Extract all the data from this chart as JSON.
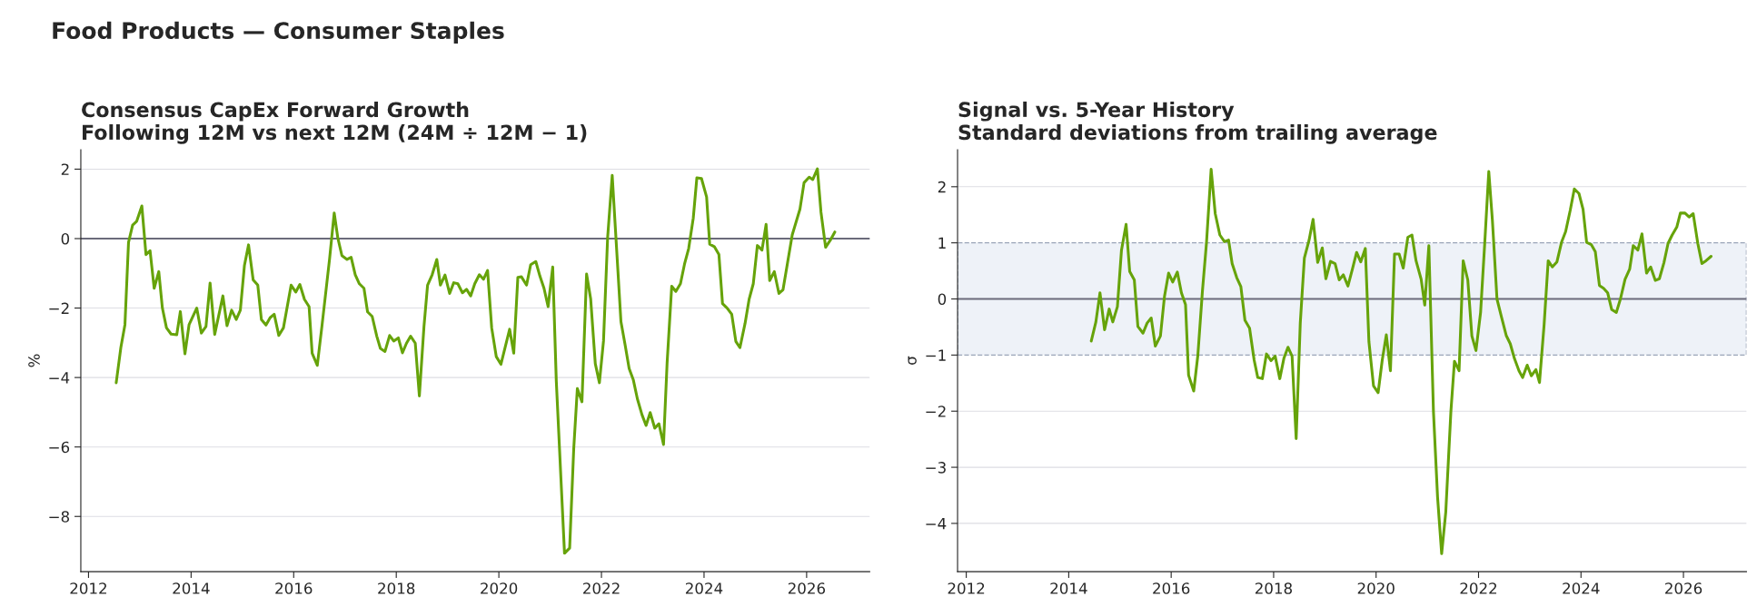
{
  "chart_data": [
    {
      "type": "line",
      "title": "Consensus CapEx Forward Growth",
      "subtitle": "Following 12M vs next 12M (24M ÷ 12M − 1)",
      "ylabel": "%",
      "annotations": [
        "Food Products — Consumer Staples"
      ],
      "xlim": [
        2011.85,
        2027.23
      ],
      "xticks": [
        2012,
        2014,
        2016,
        2018,
        2020,
        2022,
        2024,
        2026
      ],
      "ylim": [
        -9.59,
        2.56
      ],
      "yticks": [
        {
          "value": -8,
          "label": "−8"
        },
        {
          "value": -6,
          "label": "−6"
        },
        {
          "value": -4,
          "label": "−4"
        },
        {
          "value": -2,
          "label": "−2"
        },
        0,
        2
      ],
      "grid": "y",
      "ref_lines": [
        {
          "axis": "y",
          "value": 0,
          "color": "#6b6b7b",
          "line_style": "solid"
        }
      ],
      "series": [
        {
          "color": "#66a30a",
          "x": [
            2012.54,
            2012.63,
            2012.71,
            2012.78,
            2012.86,
            2012.94,
            2013.04,
            2013.12,
            2013.2,
            2013.28,
            2013.37,
            2013.44,
            2013.52,
            2013.61,
            2013.72,
            2013.79,
            2013.88,
            2013.96,
            2014.11,
            2014.2,
            2014.29,
            2014.37,
            2014.46,
            2014.62,
            2014.7,
            2014.79,
            2014.88,
            2014.96,
            2015.04,
            2015.12,
            2015.21,
            2015.3,
            2015.37,
            2015.46,
            2015.54,
            2015.62,
            2015.71,
            2015.8,
            2015.95,
            2016.04,
            2016.12,
            2016.21,
            2016.3,
            2016.36,
            2016.46,
            2016.55,
            2016.7,
            2016.79,
            2016.86,
            2016.94,
            2017.04,
            2017.12,
            2017.2,
            2017.28,
            2017.37,
            2017.44,
            2017.53,
            2017.62,
            2017.69,
            2017.78,
            2017.87,
            2017.95,
            2018.04,
            2018.12,
            2018.2,
            2018.28,
            2018.37,
            2018.45,
            2018.54,
            2018.61,
            2018.7,
            2018.79,
            2018.86,
            2018.95,
            2019.04,
            2019.12,
            2019.2,
            2019.29,
            2019.37,
            2019.45,
            2019.53,
            2019.62,
            2019.7,
            2019.78,
            2019.86,
            2019.95,
            2020.04,
            2020.21,
            2020.29,
            2020.37,
            2020.44,
            2020.54,
            2020.62,
            2020.72,
            2020.8,
            2020.88,
            2020.96,
            2021.05,
            2021.12,
            2021.21,
            2021.28,
            2021.38,
            2021.46,
            2021.53,
            2021.62,
            2021.71,
            2021.79,
            2021.88,
            2021.96,
            2022.04,
            2022.12,
            2022.21,
            2022.29,
            2022.38,
            2022.46,
            2022.54,
            2022.62,
            2022.7,
            2022.79,
            2022.87,
            2022.95,
            2023.04,
            2023.12,
            2023.21,
            2023.28,
            2023.37,
            2023.45,
            2023.54,
            2023.62,
            2023.7,
            2023.79,
            2023.86,
            2023.95,
            2024.05,
            2024.11,
            2024.2,
            2024.29,
            2024.36,
            2024.45,
            2024.54,
            2024.62,
            2024.7,
            2024.8,
            2024.88,
            2024.96,
            2025.04,
            2025.13,
            2025.21,
            2025.28,
            2025.37,
            2025.46,
            2025.54,
            2025.63,
            2025.72,
            2025.87,
            2025.95,
            2026.05,
            2026.12,
            2026.21,
            2026.28,
            2026.37,
            2026.46,
            2026.55
          ],
          "values": [
            -4.15,
            -3.14,
            -2.48,
            -0.11,
            0.39,
            0.5,
            0.94,
            -0.46,
            -0.35,
            -1.43,
            -0.95,
            -2.0,
            -2.57,
            -2.75,
            -2.77,
            -2.1,
            -3.32,
            -2.48,
            -2.0,
            -2.72,
            -2.53,
            -1.28,
            -2.76,
            -1.65,
            -2.51,
            -2.06,
            -2.33,
            -2.06,
            -0.77,
            -0.18,
            -1.19,
            -1.34,
            -2.33,
            -2.49,
            -2.28,
            -2.18,
            -2.79,
            -2.57,
            -1.34,
            -1.54,
            -1.32,
            -1.75,
            -1.96,
            -3.3,
            -3.65,
            -2.53,
            -0.58,
            0.74,
            0.02,
            -0.49,
            -0.6,
            -0.54,
            -1.04,
            -1.3,
            -1.43,
            -2.11,
            -2.24,
            -2.81,
            -3.16,
            -3.25,
            -2.79,
            -2.95,
            -2.86,
            -3.29,
            -3.01,
            -2.81,
            -3.01,
            -4.53,
            -2.53,
            -1.34,
            -1.04,
            -0.6,
            -1.34,
            -1.05,
            -1.58,
            -1.27,
            -1.3,
            -1.56,
            -1.46,
            -1.65,
            -1.3,
            -1.04,
            -1.17,
            -0.92,
            -2.57,
            -3.4,
            -3.62,
            -2.61,
            -3.3,
            -1.12,
            -1.1,
            -1.34,
            -0.75,
            -0.66,
            -1.08,
            -1.43,
            -1.96,
            -0.82,
            -4.11,
            -6.91,
            -9.06,
            -8.91,
            -6.04,
            -4.32,
            -4.7,
            -1.02,
            -1.74,
            -3.6,
            -4.15,
            -2.95,
            0.02,
            1.82,
            -0.16,
            -2.39,
            -3.05,
            -3.74,
            -4.06,
            -4.61,
            -5.07,
            -5.38,
            -5.01,
            -5.46,
            -5.33,
            -5.93,
            -3.58,
            -1.37,
            -1.52,
            -1.3,
            -0.73,
            -0.29,
            0.59,
            1.75,
            1.73,
            1.2,
            -0.16,
            -0.23,
            -0.46,
            -1.87,
            -2.0,
            -2.18,
            -2.96,
            -3.14,
            -2.44,
            -1.74,
            -1.3,
            -0.2,
            -0.33,
            0.41,
            -1.21,
            -0.95,
            -1.58,
            -1.47,
            -0.68,
            0.11,
            0.85,
            1.61,
            1.77,
            1.7,
            2.01,
            0.76,
            -0.25,
            -0.05,
            0.19
          ]
        }
      ]
    },
    {
      "type": "line",
      "title": "Signal vs. 5-Year History",
      "subtitle": "Standard deviations from trailing average",
      "ylabel": "σ",
      "xlim": [
        2011.83,
        2027.23
      ],
      "xticks": [
        2012,
        2014,
        2016,
        2018,
        2020,
        2022,
        2024,
        2026
      ],
      "ylim": [
        -4.86,
        2.66
      ],
      "yticks": [
        {
          "value": -4,
          "label": "−4"
        },
        {
          "value": -3,
          "label": "−3"
        },
        {
          "value": -2,
          "label": "−2"
        },
        {
          "value": -1,
          "label": "−1"
        },
        0,
        1,
        2
      ],
      "grid": "y",
      "bands": [
        {
          "axis": "y",
          "from": -1,
          "to": 1,
          "color": "#eef2f8"
        }
      ],
      "ref_lines": [
        {
          "axis": "y",
          "value": 0,
          "color": "#6b6b7b",
          "line_style": "solid"
        }
      ],
      "series": [
        {
          "color": "#66a30a",
          "x": [
            2014.44,
            2014.53,
            2014.61,
            2014.7,
            2014.79,
            2014.86,
            2014.95,
            2015.03,
            2015.12,
            2015.19,
            2015.28,
            2015.35,
            2015.45,
            2015.53,
            2015.61,
            2015.69,
            2015.79,
            2015.87,
            2015.95,
            2016.03,
            2016.12,
            2016.2,
            2016.28,
            2016.34,
            2016.44,
            2016.52,
            2016.61,
            2016.69,
            2016.78,
            2016.86,
            2016.95,
            2017.04,
            2017.12,
            2017.19,
            2017.28,
            2017.36,
            2017.44,
            2017.53,
            2017.62,
            2017.69,
            2017.78,
            2017.86,
            2017.95,
            2018.03,
            2018.12,
            2018.2,
            2018.28,
            2018.36,
            2018.44,
            2018.52,
            2018.6,
            2018.69,
            2018.77,
            2018.86,
            2018.95,
            2019.02,
            2019.11,
            2019.2,
            2019.28,
            2019.36,
            2019.45,
            2019.54,
            2019.62,
            2019.7,
            2019.79,
            2019.86,
            2019.95,
            2020.04,
            2020.12,
            2020.2,
            2020.28,
            2020.36,
            2020.45,
            2020.53,
            2020.62,
            2020.7,
            2020.78,
            2020.88,
            2020.95,
            2021.03,
            2021.12,
            2021.2,
            2021.28,
            2021.36,
            2021.46,
            2021.53,
            2021.62,
            2021.7,
            2021.79,
            2021.87,
            2021.95,
            2022.04,
            2022.12,
            2022.2,
            2022.27,
            2022.36,
            2022.45,
            2022.54,
            2022.62,
            2022.7,
            2022.79,
            2022.86,
            2022.95,
            2023.03,
            2023.12,
            2023.19,
            2023.28,
            2023.36,
            2023.44,
            2023.53,
            2023.62,
            2023.7,
            2023.79,
            2023.87,
            2023.96,
            2024.04,
            2024.11,
            2024.2,
            2024.28,
            2024.36,
            2024.44,
            2024.52,
            2024.6,
            2024.69,
            2024.77,
            2024.86,
            2024.95,
            2025.02,
            2025.11,
            2025.19,
            2025.28,
            2025.36,
            2025.45,
            2025.53,
            2025.62,
            2025.7,
            2025.78,
            2025.87,
            2025.94,
            2026.03,
            2026.11,
            2026.19,
            2026.28,
            2026.36,
            2026.44,
            2026.54
          ],
          "values": [
            -0.75,
            -0.41,
            0.11,
            -0.55,
            -0.18,
            -0.41,
            -0.14,
            0.87,
            1.33,
            0.49,
            0.34,
            -0.49,
            -0.61,
            -0.43,
            -0.34,
            -0.84,
            -0.66,
            0.05,
            0.46,
            0.3,
            0.48,
            0.11,
            -0.1,
            -1.36,
            -1.64,
            -1.01,
            0.14,
            1.01,
            2.31,
            1.52,
            1.14,
            1.02,
            1.05,
            0.63,
            0.38,
            0.22,
            -0.38,
            -0.52,
            -1.09,
            -1.4,
            -1.42,
            -0.98,
            -1.1,
            -1.02,
            -1.42,
            -1.06,
            -0.86,
            -1.02,
            -2.49,
            -0.43,
            0.73,
            1.04,
            1.42,
            0.65,
            0.91,
            0.36,
            0.67,
            0.63,
            0.34,
            0.43,
            0.23,
            0.54,
            0.83,
            0.66,
            0.9,
            -0.76,
            -1.55,
            -1.67,
            -1.09,
            -0.64,
            -1.28,
            0.8,
            0.8,
            0.55,
            1.1,
            1.14,
            0.68,
            0.35,
            -0.11,
            0.95,
            -2.01,
            -3.53,
            -4.54,
            -3.8,
            -2.01,
            -1.11,
            -1.28,
            0.68,
            0.34,
            -0.66,
            -0.92,
            -0.24,
            0.98,
            2.27,
            1.41,
            0.0,
            -0.33,
            -0.65,
            -0.8,
            -1.06,
            -1.28,
            -1.4,
            -1.18,
            -1.37,
            -1.26,
            -1.49,
            -0.46,
            0.68,
            0.57,
            0.66,
            1.01,
            1.2,
            1.58,
            1.96,
            1.88,
            1.6,
            1.01,
            0.97,
            0.84,
            0.24,
            0.19,
            0.11,
            -0.19,
            -0.24,
            0.0,
            0.35,
            0.53,
            0.95,
            0.87,
            1.16,
            0.46,
            0.57,
            0.33,
            0.36,
            0.65,
            0.99,
            1.14,
            1.28,
            1.53,
            1.53,
            1.46,
            1.52,
            0.99,
            0.63,
            0.68,
            0.76
          ]
        }
      ]
    }
  ]
}
